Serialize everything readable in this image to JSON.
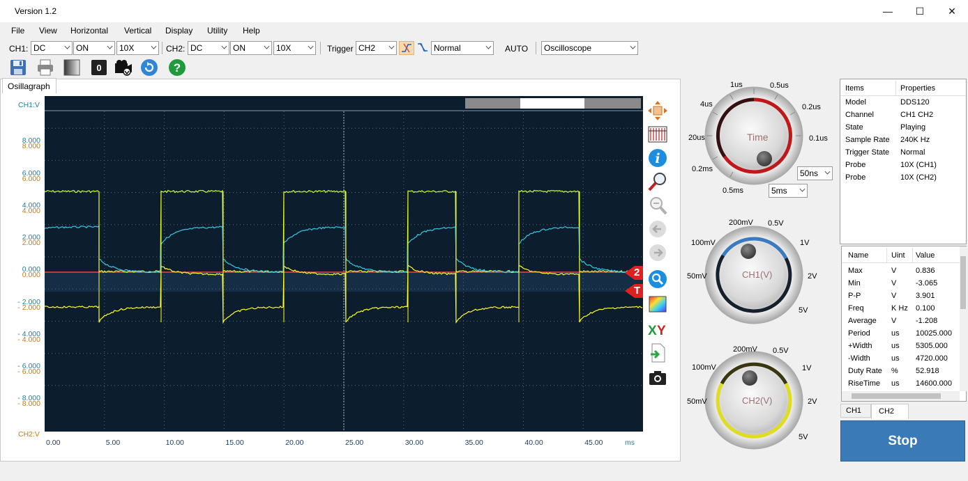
{
  "window": {
    "title": "Version 1.2",
    "minimize": "—",
    "maximize": "☐",
    "close": "✕"
  },
  "menu": [
    "File",
    "View",
    "Horizontal",
    "Vertical",
    "Display",
    "Utility",
    "Help"
  ],
  "controls": {
    "ch1_label": "CH1:",
    "ch1_coupling": "DC",
    "ch1_state": "ON",
    "ch1_probe": "10X",
    "ch2_label": "CH2:",
    "ch2_coupling": "DC",
    "ch2_state": "ON",
    "ch2_probe": "10X",
    "trigger_label": "Trigger",
    "trigger_source": "CH2",
    "trigger_mode": "Normal",
    "auto_label": "AUTO",
    "mode": "Oscilloscope"
  },
  "toolbar": {
    "counter": "0"
  },
  "tab": "Osillagraph",
  "scope": {
    "ch1_axis": "CH1:V",
    "ch2_axis": "CH2:V",
    "y_labels": [
      "8.000",
      "6.000",
      "4.000",
      "2.000",
      "0.000",
      "- 2.000",
      "- 4.000",
      "- 6.000",
      "- 8.000"
    ],
    "x_labels": [
      "0.00",
      "5.00",
      "10.00",
      "15.00",
      "20.00",
      "25.00",
      "30.00",
      "35.00",
      "40.00",
      "45.00"
    ],
    "x_unit": "ms",
    "marker_ch2": "2",
    "marker_trigger": "T",
    "colors": {
      "ch1": "#ffff26",
      "ch2": "#37c8e6",
      "ch1_alt": "#c8ff3a",
      "ref": "#ff4040"
    }
  },
  "knobs": {
    "time": {
      "name": "Time",
      "labels": [
        "1us",
        "0.5us",
        "4us",
        "0.2us",
        "20us",
        "0.1us",
        "0.2ms",
        "0.5ms"
      ],
      "select1": "50ns",
      "select2": "5ms"
    },
    "ch1": {
      "name": "CH1(V)",
      "labels": [
        "200mV",
        "0.5V",
        "100mV",
        "1V",
        "50mV",
        "2V",
        "5V"
      ]
    },
    "ch2": {
      "name": "CH2(V)",
      "labels": [
        "200mV",
        "0.5V",
        "100mV",
        "1V",
        "50mV",
        "2V",
        "5V"
      ]
    }
  },
  "properties": {
    "headers": [
      "Items",
      "Properties"
    ],
    "rows": [
      [
        "Model",
        "DDS120"
      ],
      [
        "Channel",
        "CH1 CH2"
      ],
      [
        "State",
        "Playing"
      ],
      [
        "Sample Rate",
        "240K Hz"
      ],
      [
        "Trigger State",
        "Normal"
      ],
      [
        "Probe",
        "10X (CH1)"
      ],
      [
        "Probe",
        "10X (CH2)"
      ]
    ]
  },
  "measurements": {
    "headers": [
      "Name",
      "Uint",
      "Value"
    ],
    "rows": [
      [
        "Max",
        "V",
        "0.836"
      ],
      [
        "Min",
        "V",
        "-3.065"
      ],
      [
        "P-P",
        "V",
        "3.901"
      ],
      [
        "Freq",
        "K Hz",
        "0.100"
      ],
      [
        "Average",
        "V",
        "-1.208"
      ],
      [
        "Period",
        "us",
        "10025.000"
      ],
      [
        "+Width",
        "us",
        "5305.000"
      ],
      [
        "-Width",
        "us",
        "4720.000"
      ],
      [
        "Duty Rate",
        "%",
        "52.918"
      ],
      [
        "RiseTime",
        "us",
        "14600.000"
      ]
    ],
    "tabs": [
      "CH1",
      "CH2"
    ]
  },
  "stop_label": "Stop"
}
